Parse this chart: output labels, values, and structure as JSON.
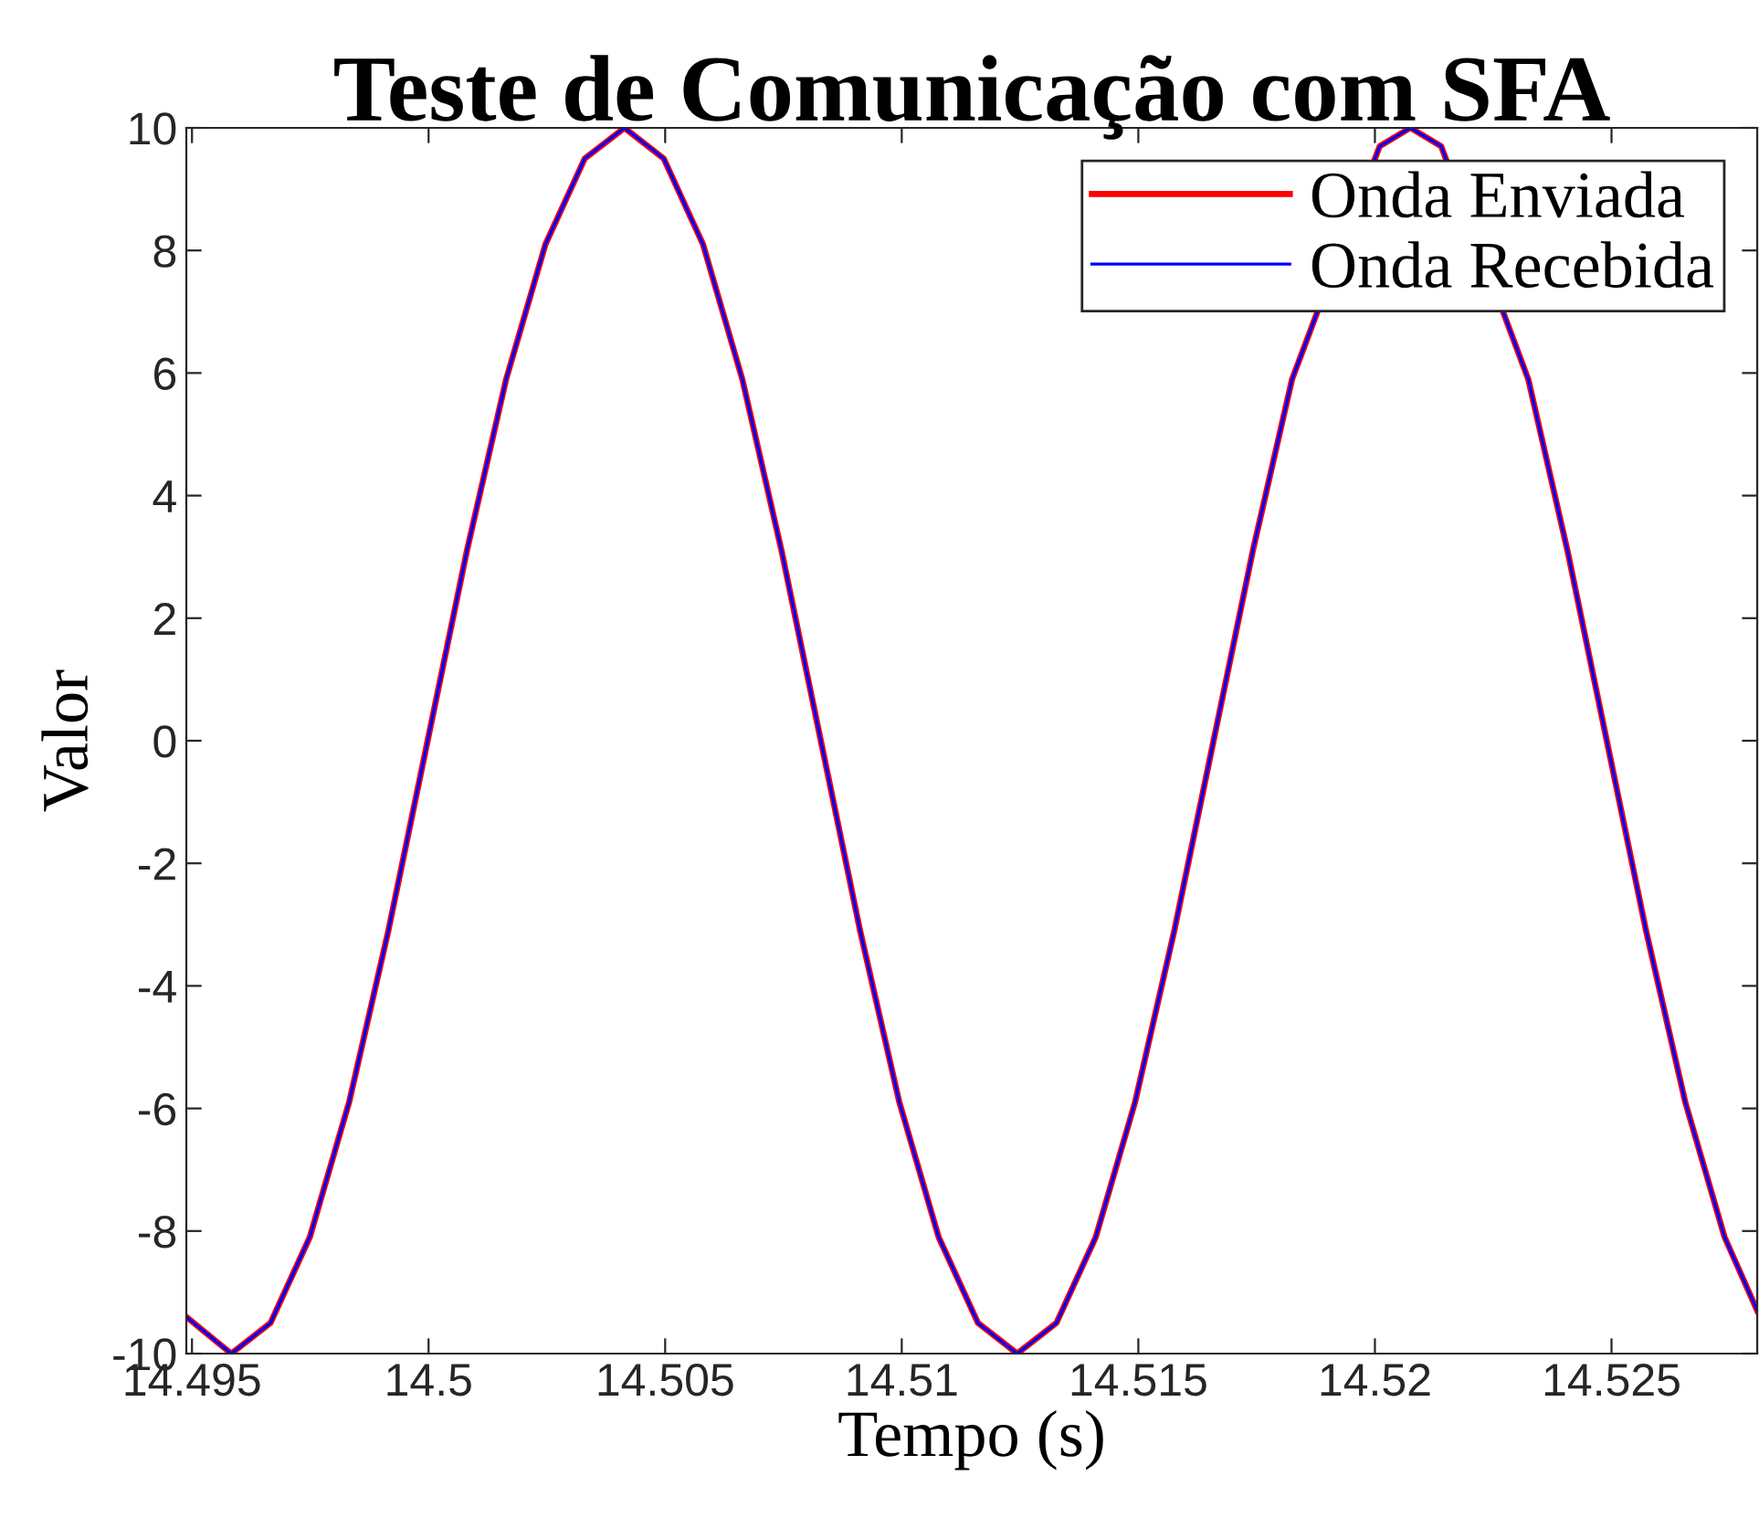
{
  "chart_data": {
    "type": "line",
    "title": "Teste de Comunicação com SFA",
    "xlabel": "Tempo (s)",
    "ylabel": "Valor",
    "x": [
      14.49488,
      14.49583,
      14.49666,
      14.49749,
      14.49832,
      14.49915,
      14.49998,
      14.50081,
      14.50164,
      14.50247,
      14.5033,
      14.50414,
      14.50497,
      14.5058,
      14.50663,
      14.50746,
      14.50829,
      14.50912,
      14.50995,
      14.51078,
      14.51161,
      14.51244,
      14.51327,
      14.5141,
      14.51493,
      14.51576,
      14.51659,
      14.51742,
      14.51825,
      14.5201,
      14.52075,
      14.5214,
      14.52324,
      14.52407,
      14.5249,
      14.52573,
      14.52656,
      14.52739,
      14.52808
    ],
    "series": [
      {
        "name": "Onda Enviada",
        "color": "#ff0000",
        "values": [
          -9.4,
          -10,
          -9.5,
          -8.1,
          -5.9,
          -3.1,
          0,
          3.1,
          5.9,
          8.1,
          9.5,
          10,
          9.5,
          8.1,
          5.9,
          3.1,
          0,
          -3.1,
          -5.9,
          -8.1,
          -9.5,
          -10,
          -9.5,
          -8.1,
          -5.9,
          -3.1,
          0,
          3.1,
          5.9,
          9.7,
          10,
          9.7,
          5.9,
          3.1,
          0,
          -3.1,
          -5.9,
          -8.1,
          -9.3
        ]
      },
      {
        "name": "Onda Recebida",
        "color": "#0000ff",
        "values": [
          -9.4,
          -10,
          -9.5,
          -8.1,
          -5.9,
          -3.1,
          0,
          3.1,
          5.9,
          8.1,
          9.5,
          10,
          9.5,
          8.1,
          5.9,
          3.1,
          0,
          -3.1,
          -5.9,
          -8.1,
          -9.5,
          -10,
          -9.5,
          -8.1,
          -5.9,
          -3.1,
          0,
          3.1,
          5.9,
          9.7,
          10,
          9.7,
          5.9,
          3.1,
          0,
          -3.1,
          -5.9,
          -8.1,
          -9.3
        ]
      }
    ],
    "xlim": [
      14.49488,
      14.52808
    ],
    "xticks": [
      14.495,
      14.5,
      14.505,
      14.51,
      14.515,
      14.52,
      14.525
    ],
    "ylim": [
      -10,
      10
    ],
    "yticks": [
      -10,
      -8,
      -6,
      -4,
      -2,
      0,
      2,
      4,
      6,
      8,
      10
    ],
    "grid": false,
    "legend": "top right",
    "marker": "none",
    "line_style": "solid"
  }
}
